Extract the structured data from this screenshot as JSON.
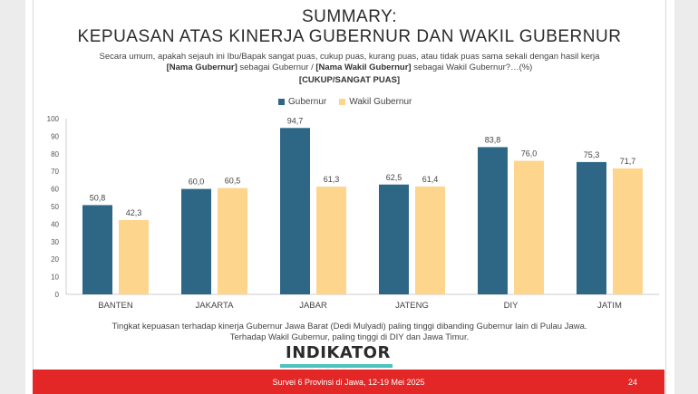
{
  "title": {
    "line1": "SUMMARY:",
    "line2": "KEPUASAN ATAS KINERJA GUBERNUR DAN WAKIL GUBERNUR"
  },
  "question": {
    "part1": "Secara umum, apakah sejauh ini Ibu/Bapak sangat puas, cukup puas, kurang puas, atau tidak puas sama sekali dengan hasil kerja ",
    "bold1": "[Nama Gubernur]",
    "part2": " sebagai Gubernur / ",
    "bold2": "[Nama Wakil Gubernur]",
    "part3": " sebagai Wakil Gubernur?…(%)"
  },
  "subtitle": "[CUKUP/SANGAT PUAS]",
  "chart_data": {
    "type": "bar",
    "categories": [
      "BANTEN",
      "JAKARTA",
      "JABAR",
      "JATENG",
      "DIY",
      "JATIM"
    ],
    "series": [
      {
        "name": "Gubernur",
        "color": "#2e6685",
        "values": [
          50.8,
          60.0,
          94.7,
          62.5,
          83.8,
          75.3
        ],
        "labels": [
          "50,8",
          "60,0",
          "94,7",
          "62,5",
          "83,8",
          "75,3"
        ]
      },
      {
        "name": "Wakil Gubernur",
        "color": "#fdd58c",
        "values": [
          42.3,
          60.5,
          61.3,
          61.4,
          76.0,
          71.7
        ],
        "labels": [
          "42,3",
          "60,5",
          "61,3",
          "61,4",
          "76,0",
          "71,7"
        ]
      }
    ],
    "yticks": [
      0,
      10,
      20,
      30,
      40,
      50,
      60,
      70,
      80,
      90,
      100
    ],
    "ylim": [
      0,
      100
    ]
  },
  "note": {
    "line1": "Tingkat kepuasan terhadap kinerja Gubernur Jawa Barat (Dedi Mulyadi) paling tinggi dibanding Gubernur lain di Pulau Jawa.",
    "line2": "Terhadap Wakil Gubernur, paling tinggi di DIY dan Jawa Timur."
  },
  "logo": "INDIKATOR",
  "footer": {
    "text": "Survei 6 Provinsi di Jawa, 12-19 Mei 2025",
    "page": "24"
  }
}
